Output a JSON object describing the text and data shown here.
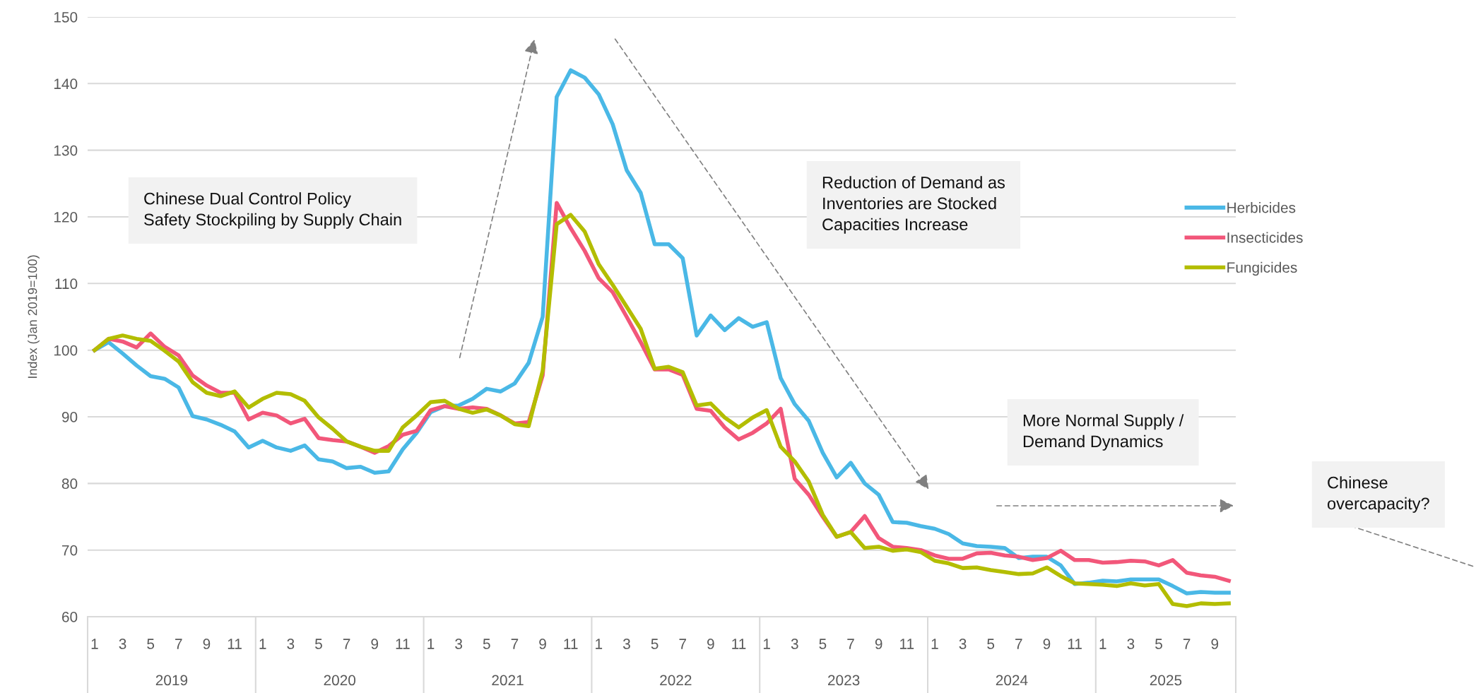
{
  "chart_data": {
    "type": "line",
    "ylabel": "Index (Jan 2019=100)",
    "categories": [
      "1",
      null,
      "3",
      null,
      "5",
      null,
      "7",
      null,
      "9",
      null,
      "11",
      null,
      "1",
      null,
      "3",
      null,
      "5",
      null,
      "7",
      null,
      "9",
      null,
      "11",
      null,
      "1",
      null,
      "3",
      null,
      "5",
      null,
      "7",
      null,
      "9",
      null,
      "11",
      null,
      "1",
      null,
      "3",
      null,
      "5",
      null,
      "7",
      null,
      "9",
      null,
      "11",
      null,
      "1",
      null,
      "3",
      null,
      "5",
      null,
      "7",
      null,
      "9",
      null,
      "11",
      null,
      "1",
      null,
      "3",
      null,
      "5",
      null,
      "7",
      null,
      "9",
      null,
      "11",
      null,
      "1",
      null,
      "3",
      null,
      "5",
      null,
      "7",
      null,
      "9",
      null
    ],
    "series": [
      {
        "name": "Herbicides",
        "color": "#4ab8e6",
        "values": [
          100,
          101.2,
          99.5,
          97.7,
          96.1,
          95.7,
          94.4,
          90.1,
          89.6,
          88.8,
          87.8,
          85.4,
          86.4,
          85.4,
          84.9,
          85.7,
          83.6,
          83.3,
          82.3,
          82.5,
          81.6,
          81.8,
          85.1,
          87.6,
          90.7,
          91.6,
          91.7,
          92.7,
          94.2,
          93.8,
          95.0,
          98.1,
          105.0,
          138.0,
          142.0,
          140.9,
          138.4,
          133.9,
          127.0,
          123.6,
          115.9,
          115.9,
          113.8,
          102.2,
          105.2,
          103.0,
          104.8,
          103.5,
          104.2,
          95.8,
          91.9,
          89.4,
          84.6,
          80.9,
          83.1,
          80.0,
          78.3,
          74.2,
          74.1,
          73.6,
          73.2,
          72.4,
          71.0,
          70.6,
          70.5,
          70.3,
          68.8,
          69.0,
          69.0,
          67.7,
          64.9,
          65.1,
          65.4,
          65.3,
          65.6,
          65.6,
          65.6,
          64.6,
          63.5,
          63.7,
          63.6,
          63.6
        ]
      },
      {
        "name": "Insecticides",
        "color": "#f2577a",
        "values": [
          100,
          101.7,
          101.3,
          100.4,
          102.5,
          100.5,
          99.2,
          96.2,
          94.7,
          93.6,
          93.6,
          89.6,
          90.6,
          90.2,
          89.0,
          89.7,
          86.8,
          86.5,
          86.3,
          85.5,
          84.6,
          85.6,
          87.3,
          87.9,
          91.0,
          91.6,
          91.2,
          91.4,
          91.2,
          90.2,
          89.0,
          89.2,
          96.2,
          122.1,
          118.3,
          114.9,
          110.8,
          108.7,
          105.0,
          101.2,
          97.1,
          97.1,
          96.3,
          91.2,
          90.9,
          88.4,
          86.6,
          87.6,
          89.0,
          91.2,
          80.7,
          78.3,
          75.0,
          72.0,
          72.7,
          75.1,
          71.8,
          70.5,
          70.3,
          70.0,
          69.2,
          68.7,
          68.7,
          69.5,
          69.6,
          69.2,
          69.0,
          68.5,
          68.8,
          69.9,
          68.5,
          68.5,
          68.1,
          68.2,
          68.4,
          68.3,
          67.7,
          68.5,
          66.6,
          66.2,
          66.0,
          65.4
        ]
      },
      {
        "name": "Fungicides",
        "color": "#b3bd00",
        "values": [
          100,
          101.7,
          102.2,
          101.7,
          101.4,
          99.9,
          98.3,
          95.2,
          93.6,
          93.1,
          93.8,
          91.4,
          92.7,
          93.6,
          93.4,
          92.4,
          89.9,
          88.2,
          86.3,
          85.5,
          84.9,
          84.9,
          88.4,
          90.2,
          92.2,
          92.4,
          91.2,
          90.6,
          91.1,
          90.2,
          88.9,
          88.6,
          96.9,
          118.9,
          120.3,
          117.8,
          112.9,
          109.8,
          106.5,
          103.2,
          97.2,
          97.5,
          96.7,
          91.7,
          92.0,
          89.9,
          88.4,
          89.9,
          91.0,
          85.5,
          83.3,
          80.3,
          75.3,
          72.0,
          72.7,
          70.3,
          70.5,
          69.9,
          70.1,
          69.7,
          68.4,
          68.0,
          67.3,
          67.4,
          67.0,
          66.7,
          66.4,
          66.5,
          67.4,
          66.1,
          65.0,
          64.9,
          64.8,
          64.6,
          65.0,
          64.7,
          64.9,
          61.9,
          61.6,
          62.0,
          61.9,
          62.0
        ]
      }
    ],
    "ylim": [
      60,
      150
    ],
    "yticks": [
      60,
      70,
      80,
      90,
      100,
      110,
      120,
      130,
      140,
      150
    ],
    "grid": "y",
    "legend": "right",
    "marker": "none",
    "line_style": "solid",
    "annotations": [
      "Chinese Dual Control Policy\nSafety Stockpiling by Supply Chain",
      "Reduction of Demand as\nInventories are Stocked\nCapacities Increase",
      "More Normal Supply /\nDemand Dynamics",
      "Chinese\novercapacity?",
      "2019",
      "2020",
      "2021",
      "2022",
      "2023",
      "2024",
      "2025"
    ]
  }
}
